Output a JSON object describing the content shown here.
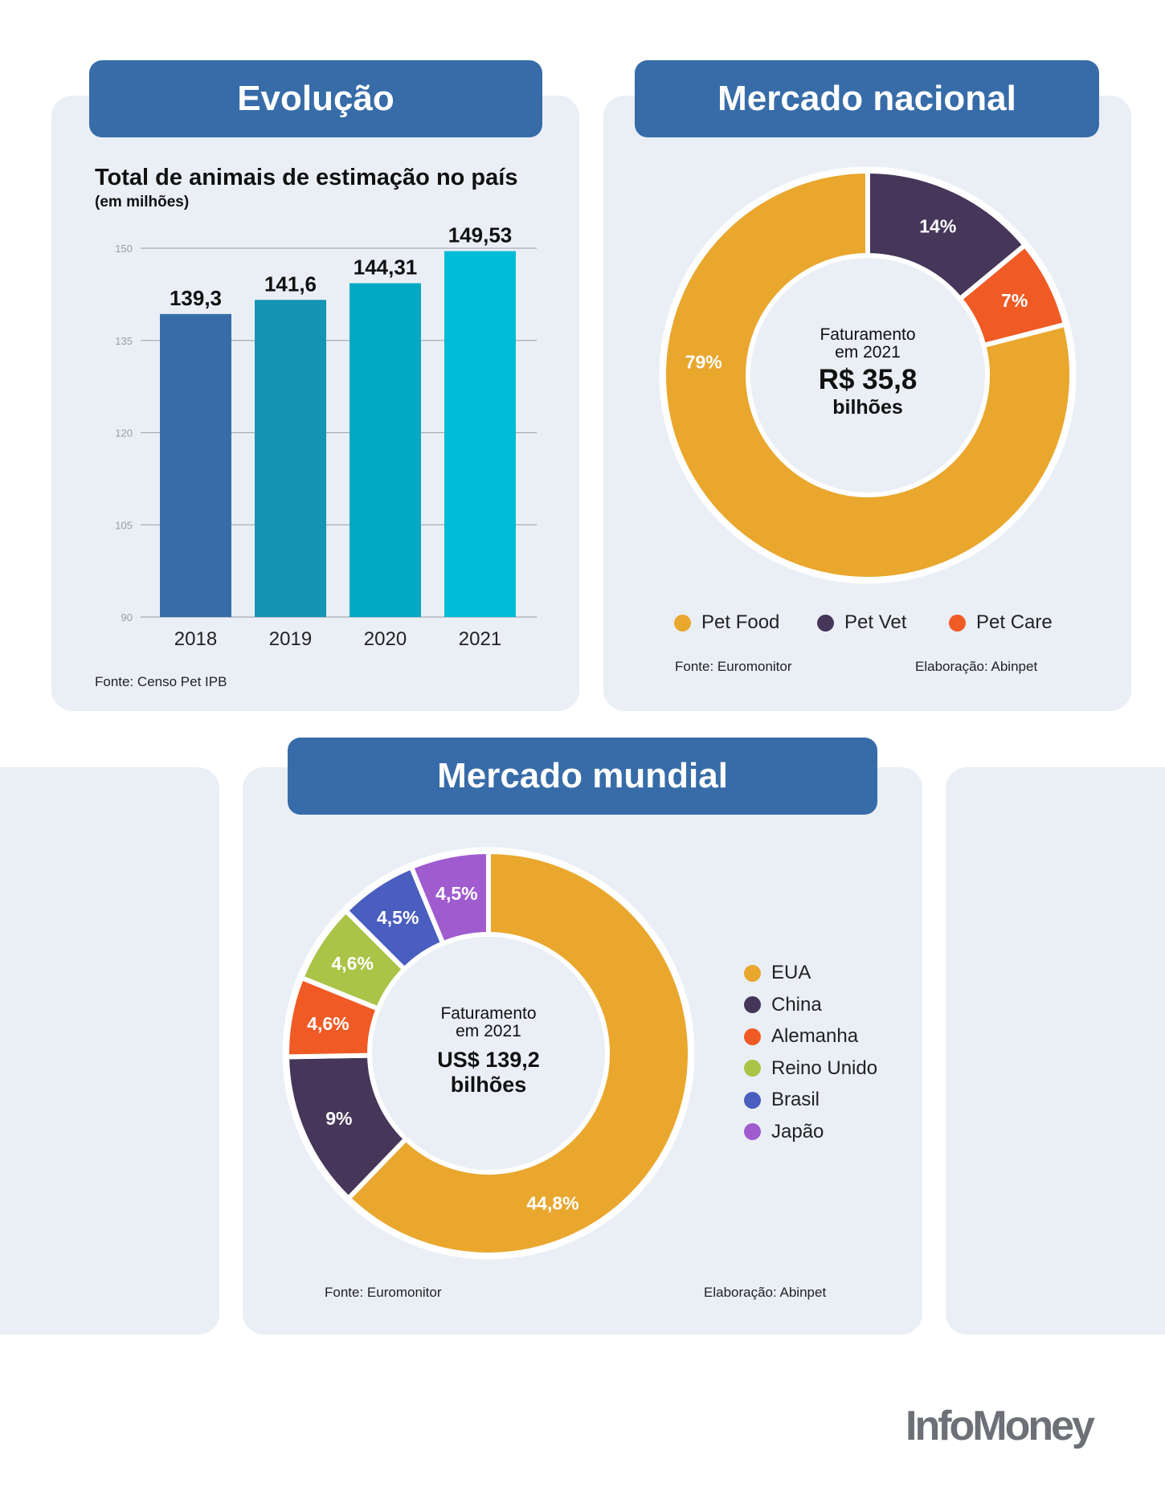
{
  "logo": "InfoMoney",
  "chart_data": [
    {
      "type": "bar",
      "header": "Evolução",
      "title": "Total de animais de estimação no país",
      "subtitle": "(em milhões)",
      "categories": [
        "2018",
        "2019",
        "2020",
        "2021"
      ],
      "values": [
        139.3,
        141.6,
        144.31,
        149.53
      ],
      "value_labels": [
        "139,3",
        "141,6",
        "144,31",
        "149,53"
      ],
      "yticks": [
        150,
        135,
        120,
        105,
        90
      ],
      "ylim": [
        90,
        150
      ],
      "grid": true,
      "colors": [
        "#376ca8",
        "#1594b3",
        "#03a8c4",
        "#00bcd6"
      ],
      "source": "Fonte: Censo Pet IPB"
    },
    {
      "type": "pie",
      "header": "Mercado nacional",
      "center": {
        "line1": "Faturamento",
        "line2": "em 2021",
        "value": "R$ 35,8",
        "unit": "bilhões"
      },
      "slices": [
        {
          "name": "Pet Vet",
          "value": 14,
          "label": "14%",
          "color": "#45365a"
        },
        {
          "name": "Pet Care",
          "value": 7,
          "label": "7%",
          "color": "#f05a24"
        },
        {
          "name": "Pet Food",
          "value": 79,
          "label": "79%",
          "color": "#e9a72e"
        }
      ],
      "legend": [
        "Pet Food",
        "Pet Vet",
        "Pet Care"
      ],
      "legend_colors": [
        "#e9a72e",
        "#45365a",
        "#f05a24"
      ],
      "source": "Fonte: Euromonitor",
      "credit": "Elaboração: Abinpet"
    },
    {
      "type": "pie",
      "header": "Mercado mundial",
      "center": {
        "line1": "Faturamento",
        "line2": "em 2021",
        "value": "US$ 139,2",
        "unit": "bilhões"
      },
      "slices": [
        {
          "name": "EUA",
          "value": 44.8,
          "label": "44,8%",
          "color": "#e9a72e"
        },
        {
          "name": "China",
          "value": 9,
          "label": "9%",
          "color": "#45365a"
        },
        {
          "name": "Alemanha",
          "value": 4.6,
          "label": "4,6%",
          "color": "#f05a24"
        },
        {
          "name": "Reino Unido",
          "value": 4.6,
          "label": "4,6%",
          "color": "#a9c447"
        },
        {
          "name": "Brasil",
          "value": 4.5,
          "label": "4,5%",
          "color": "#4a5ebf"
        },
        {
          "name": "Japão",
          "value": 4.5,
          "label": "4,5%",
          "color": "#a05ccf"
        }
      ],
      "source": "Fonte: Euromonitor",
      "credit": "Elaboração: Abinpet"
    }
  ]
}
